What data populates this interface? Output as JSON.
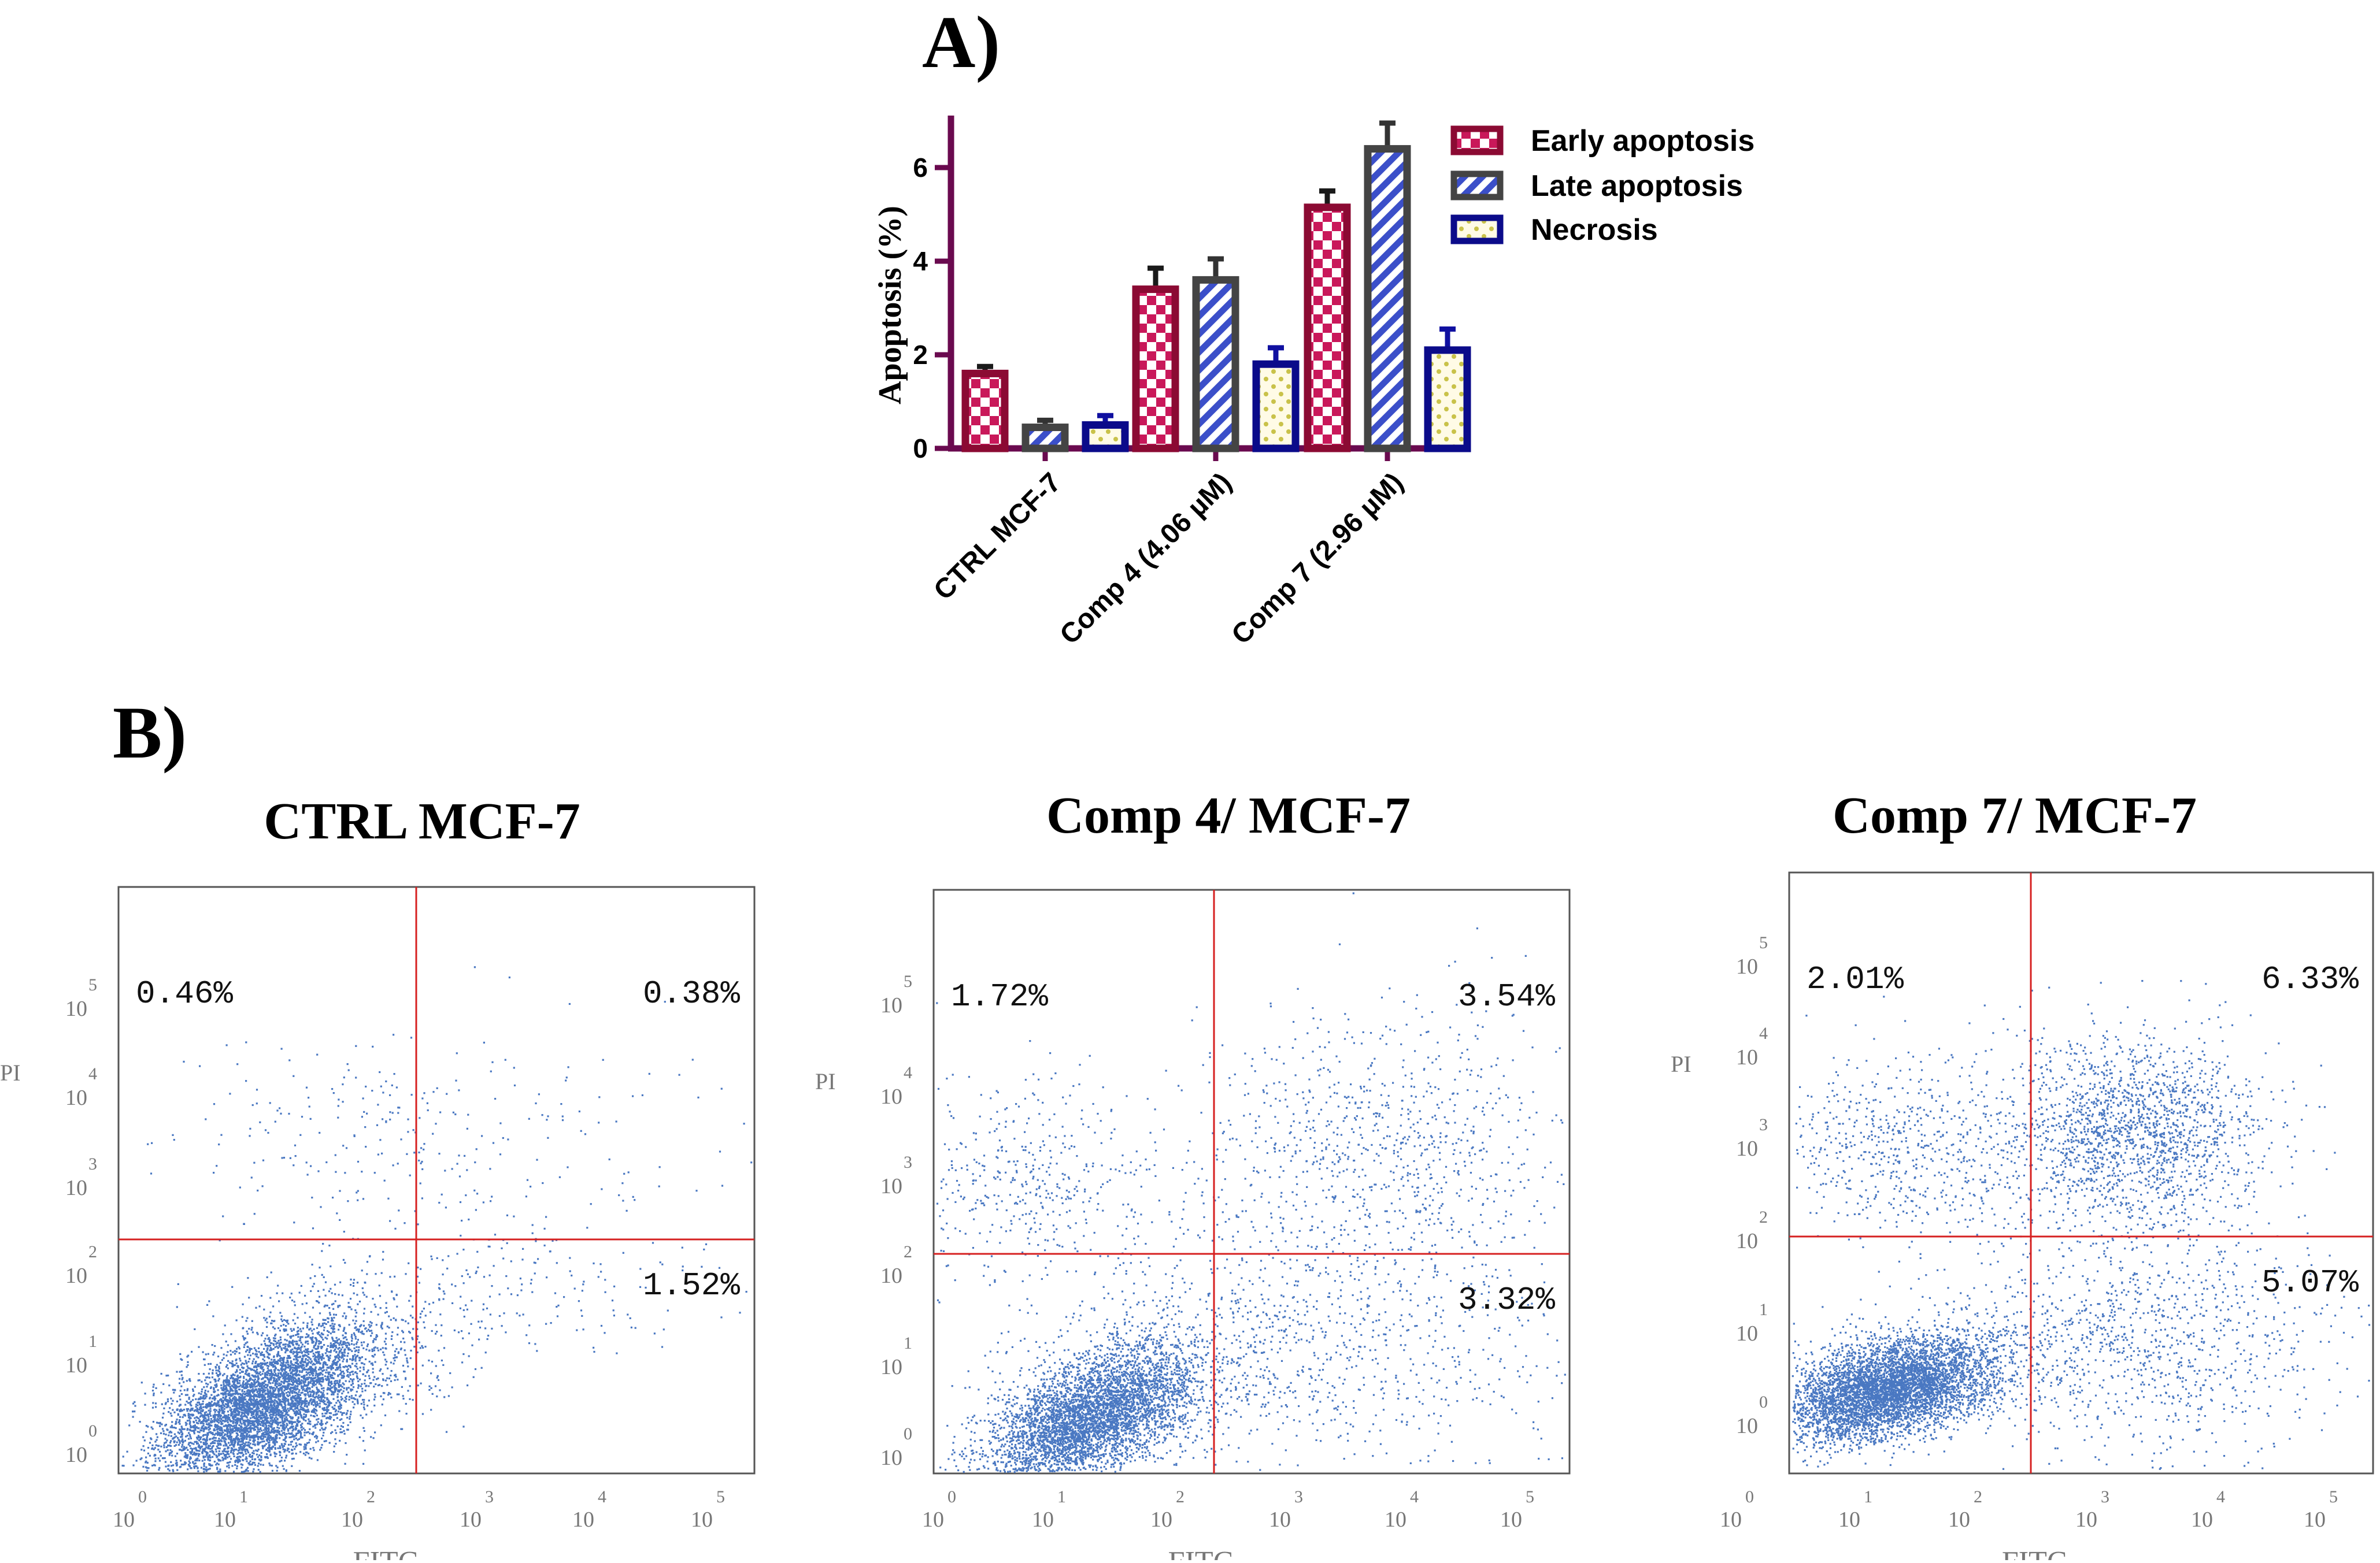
{
  "panel_a_label": "A)",
  "panel_b_label": "B)",
  "colors": {
    "early": "#8b0a33",
    "early_fill": "#c9185a",
    "late": "#444444",
    "late_fill": "#3b4fc9",
    "necrosis": "#0b0b8a",
    "necrosis_fill": "#c9c24a",
    "axis": "#6a0a4f",
    "quadrant": "#d62020",
    "dots": "#4a78c2"
  },
  "chart_data": [
    {
      "type": "bar",
      "title": "",
      "ylabel": "Apoptosis (%)",
      "xlabel": "",
      "ylim": [
        0,
        7
      ],
      "yticks": [
        "0",
        "2",
        "4",
        "6"
      ],
      "categories": [
        "CTRL MCF-7",
        "Comp 4 (4.06 µM)",
        "Comp 7 (2.96 µM)"
      ],
      "series": [
        {
          "name": "Early apoptosis",
          "values": [
            1.6,
            3.4,
            5.15
          ],
          "errors": [
            0.15,
            0.45,
            0.35
          ]
        },
        {
          "name": "Late apoptosis",
          "values": [
            0.45,
            3.6,
            6.4
          ],
          "errors": [
            0.15,
            0.45,
            0.55
          ]
        },
        {
          "name": "Necrosis",
          "values": [
            0.5,
            1.8,
            2.1
          ],
          "errors": [
            0.2,
            0.35,
            0.45
          ]
        }
      ],
      "legend": "top-right"
    },
    {
      "type": "scatter",
      "title": "CTRL MCF-7",
      "xlabel": "FITC",
      "ylabel": "PI",
      "x_ticks": [
        "0",
        "1",
        "2",
        "3",
        "4",
        "5"
      ],
      "y_ticks": [
        "0",
        "1",
        "2",
        "3",
        "4",
        "5"
      ],
      "tick_base": "10",
      "quadrants": {
        "upper_left": "0.46%",
        "upper_right": "0.38%",
        "lower_right": "1.52%"
      }
    },
    {
      "type": "scatter",
      "title": "Comp 4/ MCF-7",
      "xlabel": "FITC",
      "ylabel": "PI",
      "x_ticks": [
        "0",
        "1",
        "2",
        "3",
        "4",
        "5"
      ],
      "y_ticks": [
        "0",
        "1",
        "2",
        "3",
        "4",
        "5"
      ],
      "tick_base": "10",
      "quadrants": {
        "upper_left": "1.72%",
        "upper_right": "3.54%",
        "lower_right": "3.32%"
      }
    },
    {
      "type": "scatter",
      "title": "Comp 7/ MCF-7",
      "xlabel": "FITC",
      "ylabel": "PI",
      "x_ticks": [
        "0",
        "1",
        "2",
        "3",
        "4",
        "5"
      ],
      "y_ticks": [
        "0",
        "1",
        "2",
        "3",
        "4",
        "5"
      ],
      "tick_base": "10",
      "quadrants": {
        "upper_left": "2.01%",
        "upper_right": "6.33%",
        "lower_right": "5.07%"
      }
    }
  ]
}
